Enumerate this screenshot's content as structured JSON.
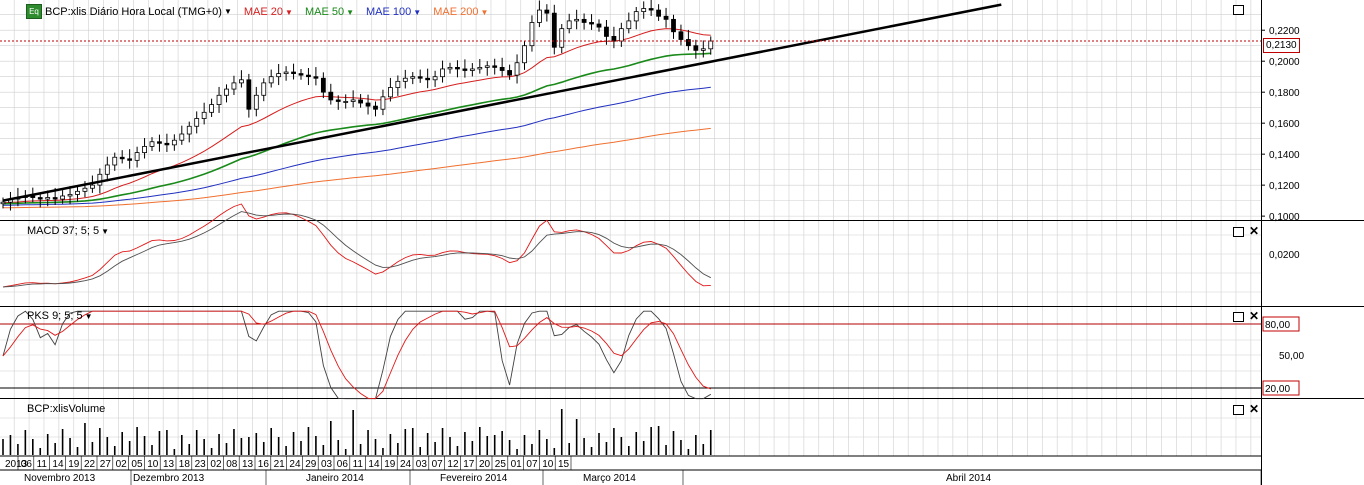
{
  "chart_data": [
    {
      "type": "line",
      "panel": "price",
      "symbol_label": "BCP:xlis Diário Hora Local (TMG+0)",
      "icon": "eq-icon",
      "indicators": [
        {
          "name": "MAE 20",
          "color": "#d61f1f"
        },
        {
          "name": "MAE 50",
          "color": "#1a8a1a"
        },
        {
          "name": "MAE 100",
          "color": "#2030c0"
        },
        {
          "name": "MAE 200",
          "color": "#f07030"
        }
      ],
      "y_ticks": [
        "0,2200",
        "0,2000",
        "0,1800",
        "0,1600",
        "0,1400",
        "0,1200",
        "0,1000"
      ],
      "ylim": [
        0.0975,
        0.2395
      ],
      "last_price_label": "0,2130",
      "last_price": 0.213,
      "close": [
        0.109,
        0.111,
        0.112,
        0.113,
        0.112,
        0.111,
        0.112,
        0.111,
        0.113,
        0.114,
        0.116,
        0.118,
        0.12,
        0.127,
        0.133,
        0.138,
        0.137,
        0.136,
        0.141,
        0.145,
        0.148,
        0.147,
        0.146,
        0.149,
        0.153,
        0.158,
        0.163,
        0.167,
        0.172,
        0.178,
        0.182,
        0.186,
        0.188,
        0.169,
        0.178,
        0.186,
        0.19,
        0.192,
        0.193,
        0.192,
        0.191,
        0.19,
        0.189,
        0.18,
        0.175,
        0.174,
        0.174,
        0.175,
        0.173,
        0.171,
        0.169,
        0.177,
        0.183,
        0.187,
        0.189,
        0.19,
        0.189,
        0.188,
        0.19,
        0.195,
        0.196,
        0.195,
        0.194,
        0.195,
        0.196,
        0.197,
        0.196,
        0.194,
        0.191,
        0.199,
        0.21,
        0.225,
        0.233,
        0.231,
        0.209,
        0.221,
        0.226,
        0.227,
        0.225,
        0.224,
        0.222,
        0.216,
        0.213,
        0.221,
        0.226,
        0.232,
        0.234,
        0.233,
        0.229,
        0.227,
        0.219,
        0.214,
        0.21,
        0.207,
        0.208,
        0.213
      ],
      "trendline": {
        "start": [
          0,
          0.11
        ],
        "end": [
          134,
          0.2365
        ]
      },
      "x_day_labels": [
        "2013",
        "06",
        "11",
        "14",
        "19",
        "22",
        "27",
        "02",
        "05",
        "10",
        "13",
        "18",
        "23",
        "02",
        "08",
        "13",
        "16",
        "21",
        "24",
        "29",
        "03",
        "06",
        "11",
        "14",
        "19",
        "24",
        "03",
        "07",
        "12",
        "17",
        "20",
        "25",
        "01",
        "07",
        "10",
        "15"
      ],
      "x_month_labels": [
        "Novembro 2013",
        "Dezembro 2013",
        "Janeiro 2014",
        "Fevereiro 2014",
        "Março 2014",
        "Abril 2014"
      ]
    },
    {
      "type": "line",
      "panel": "macd",
      "label": "MACD 37; 5; 5",
      "y_ticks": [
        "0,0200"
      ]
    },
    {
      "type": "line",
      "panel": "stochastic",
      "label": "PKS 9; 5; 5",
      "y_ticks": [
        "80,00",
        "50,00",
        "20,00"
      ],
      "levels": [
        80,
        20
      ]
    },
    {
      "type": "bar",
      "panel": "volume",
      "label": "BCP:xlisVolume"
    }
  ],
  "colors": {
    "red": "#e01818",
    "green": "#127812",
    "blue": "#1c2ec8",
    "orange": "#f06a2a",
    "grid": "#cfcfcf",
    "dark": "#000000"
  }
}
